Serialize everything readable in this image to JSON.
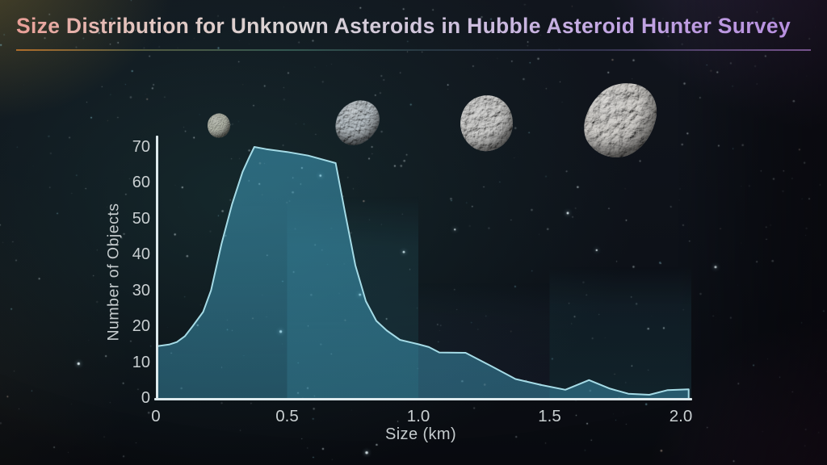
{
  "title_divider": true,
  "colors": {
    "line": "#a5dbe6",
    "area_top": "rgba(70,175,210,0.50)",
    "area_bottom": "rgba(38,125,160,0.40)",
    "axis": "#dde9ec",
    "tick_label": "#c9cfd1",
    "band_teal": "#46b4cc",
    "band_blue": "#5e86c0",
    "title_gradient": [
      "#e89e96",
      "#d9d4d6",
      "#b78fdf"
    ]
  },
  "icons": {
    "asteroids": [
      "asteroid-small-icon",
      "asteroid-medium-icon",
      "asteroid-large-icon",
      "asteroid-xlarge-icon"
    ],
    "background": "starfield-background"
  },
  "chart_data": {
    "type": "area",
    "title": "Size Distribution for Unknown Asteroids in Hubble Asteroid Hunter Survey",
    "xlabel": "Size (km)",
    "ylabel": "Number of Objects",
    "xlim": [
      0,
      2.05
    ],
    "ylim": [
      0,
      70
    ],
    "grid": false,
    "legend": "none",
    "xticks": {
      "values": [
        0,
        0.5,
        1.0,
        1.5,
        2.0
      ],
      "labels": [
        "0",
        "0.5",
        "1.0",
        "1.5",
        "2.0"
      ]
    },
    "yticks": {
      "values": [
        0,
        10,
        20,
        30,
        40,
        50,
        60,
        70
      ],
      "labels": [
        "0",
        "10",
        "20",
        "30",
        "40",
        "50",
        "60",
        "70"
      ]
    },
    "bands": [
      {
        "from": 0.5,
        "to": 1.0
      },
      {
        "from": 1.0,
        "to": 1.5
      },
      {
        "from": 1.5,
        "to": 2.04
      }
    ],
    "points": [
      [
        0.0,
        14.4
      ],
      [
        0.05,
        14.9
      ],
      [
        0.08,
        15.6
      ],
      [
        0.11,
        17.2
      ],
      [
        0.14,
        20.0
      ],
      [
        0.18,
        24.0
      ],
      [
        0.21,
        30.0
      ],
      [
        0.25,
        43.0
      ],
      [
        0.29,
        54.0
      ],
      [
        0.33,
        63.0
      ],
      [
        0.355,
        67.0
      ],
      [
        0.375,
        70.0
      ],
      [
        0.42,
        69.4
      ],
      [
        0.5,
        68.6
      ],
      [
        0.58,
        67.6
      ],
      [
        0.685,
        65.5
      ],
      [
        0.72,
        52.0
      ],
      [
        0.76,
        37.0
      ],
      [
        0.8,
        27.0
      ],
      [
        0.84,
        21.5
      ],
      [
        0.88,
        18.8
      ],
      [
        0.93,
        16.2
      ],
      [
        1.0,
        15.0
      ],
      [
        1.04,
        14.2
      ],
      [
        1.08,
        12.7
      ],
      [
        1.18,
        12.6
      ],
      [
        1.28,
        8.8
      ],
      [
        1.37,
        5.3
      ],
      [
        1.47,
        3.6
      ],
      [
        1.56,
        2.3
      ],
      [
        1.65,
        5.0
      ],
      [
        1.73,
        2.6
      ],
      [
        1.8,
        1.2
      ],
      [
        1.88,
        0.9
      ],
      [
        1.95,
        2.2
      ],
      [
        2.03,
        2.4
      ]
    ]
  }
}
